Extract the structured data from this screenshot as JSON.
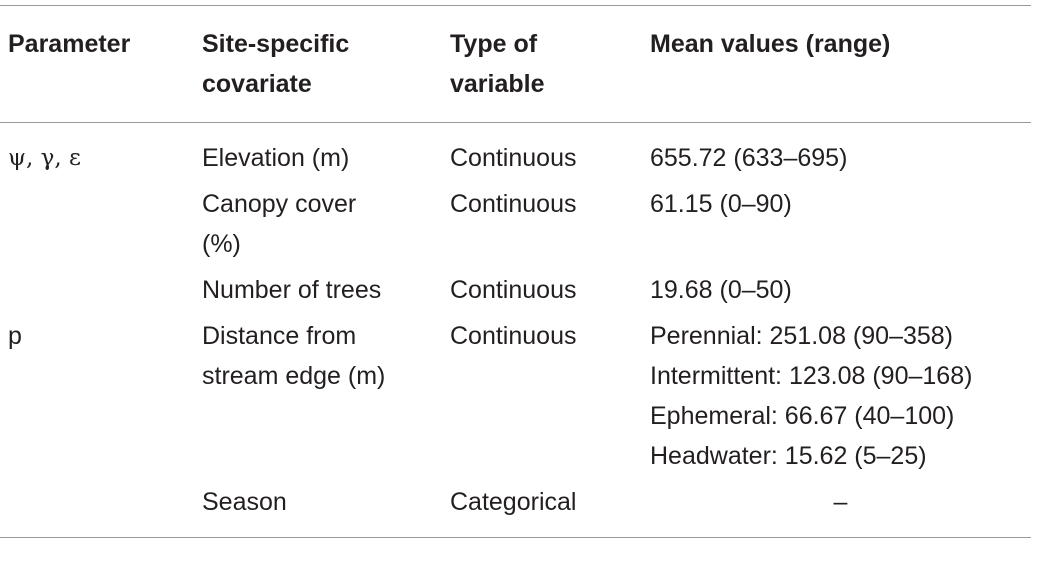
{
  "table": {
    "header": [
      "Parameter",
      "Site-specific covariate",
      "Type of variable",
      "Mean values (range)"
    ],
    "rows": [
      [
        "ψ, γ, ε",
        "Elevation (m)",
        "Continuous",
        "655.72 (633–695)"
      ],
      [
        null,
        "Canopy cover (%)",
        "Continuous",
        "61.15 (0–90)"
      ],
      [
        null,
        "Number of trees",
        "Continuous",
        "19.68 (0–50)"
      ],
      [
        "p",
        "Distance from stream edge (m)",
        "Continuous",
        [
          "Perennial: 251.08 (90–358)",
          "Intermittent: 123.08 (90–168)",
          "Ephemeral: 66.67 (40–100)",
          "Headwater: 15.62 (5–25)"
        ]
      ],
      [
        null,
        "Season",
        "Categorical",
        "–"
      ]
    ]
  }
}
